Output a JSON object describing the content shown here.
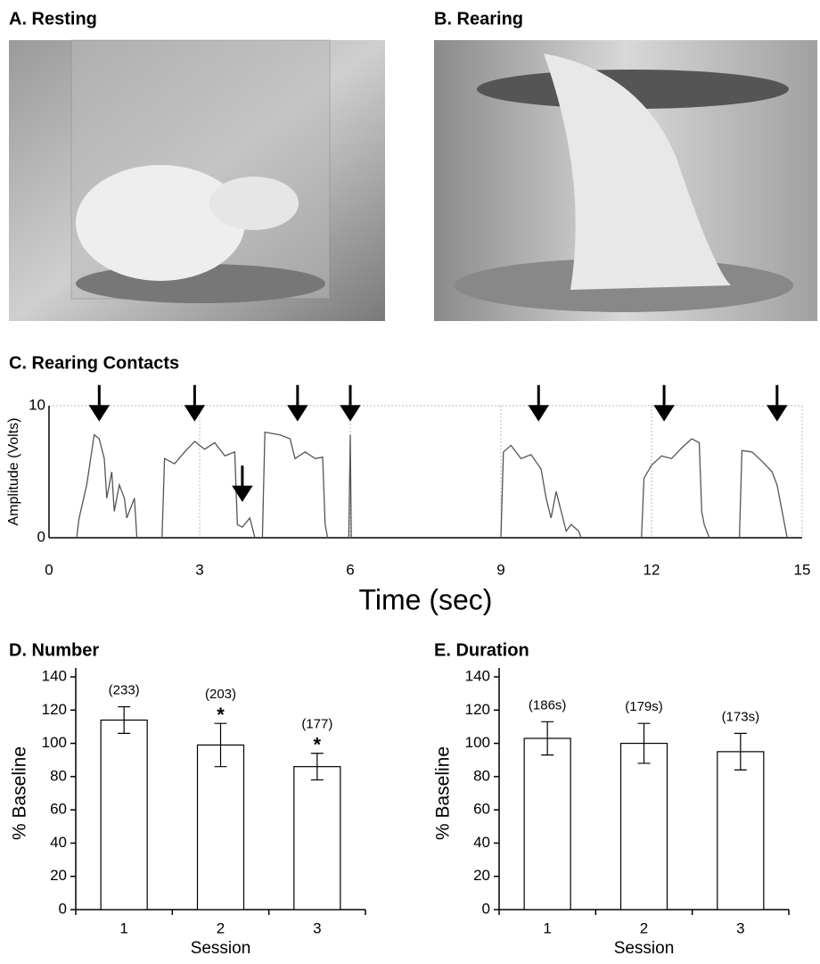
{
  "panels": [
    {
      "label": "A. Resting"
    },
    {
      "label": "B. Rearing"
    }
  ],
  "chart_data": [
    {
      "type": "line",
      "title": "C. Rearing Contacts",
      "xlabel": "Time (sec)",
      "ylabel": "Amplitude (Volts)",
      "x": [
        0.55,
        0.6,
        0.75,
        0.9,
        1.0,
        1.1,
        1.15,
        1.25,
        1.3,
        1.4,
        1.5,
        1.55,
        1.7,
        1.75,
        null,
        2.25,
        2.3,
        2.5,
        2.7,
        2.9,
        3.1,
        3.3,
        3.5,
        3.7,
        3.75,
        3.85,
        4.0,
        4.1,
        null,
        4.25,
        4.3,
        4.6,
        4.8,
        4.9,
        5.1,
        5.3,
        5.45,
        5.5,
        5.55,
        null,
        5.97,
        6.0,
        6.02,
        null,
        9.0,
        9.05,
        9.2,
        9.4,
        9.6,
        9.8,
        9.9,
        10.0,
        10.1,
        10.2,
        10.3,
        10.4,
        10.55,
        10.6,
        null,
        11.8,
        11.85,
        12.0,
        12.2,
        12.4,
        12.6,
        12.8,
        12.95,
        13.0,
        13.05,
        13.15,
        null,
        13.75,
        13.8,
        14.0,
        14.2,
        14.4,
        14.5,
        14.6,
        14.7
      ],
      "values": [
        0,
        1.5,
        4,
        7.8,
        7.5,
        6,
        3,
        5,
        2,
        4,
        3,
        1.5,
        3,
        0,
        null,
        0,
        6,
        5.6,
        6.5,
        7.3,
        6.7,
        7.2,
        6.2,
        6.5,
        1,
        0.8,
        1.5,
        0,
        null,
        0,
        8,
        7.8,
        7.5,
        6,
        6.5,
        6,
        6.1,
        1,
        0,
        null,
        0,
        7.8,
        0,
        null,
        0,
        6.5,
        7,
        6,
        6.3,
        5.2,
        3,
        1.5,
        3.5,
        2,
        0.5,
        1,
        0.5,
        0,
        null,
        0,
        4.5,
        5.5,
        6.2,
        6,
        6.8,
        7.5,
        7.2,
        2,
        1,
        0,
        null,
        0,
        6.6,
        6.5,
        5.8,
        5,
        4,
        2,
        0
      ],
      "color": "#555555",
      "arrows": {
        "x": [
          1.0,
          2.9,
          3.85,
          4.95,
          6.0,
          9.75,
          12.25,
          14.5
        ],
        "y": [
          9,
          9,
          2.9,
          9,
          9,
          9,
          9,
          9
        ]
      },
      "xlim": [
        0,
        15
      ],
      "xticks": [
        0,
        3,
        6,
        9,
        12,
        15
      ],
      "ylim": [
        0,
        10
      ],
      "yticks": [
        0,
        10
      ],
      "grid": true
    },
    {
      "type": "bar",
      "title": "D. Number",
      "xlabel": "Session",
      "ylabel": "% Baseline",
      "categories": [
        "1",
        "2",
        "3"
      ],
      "values": [
        114,
        99,
        86
      ],
      "errors": [
        8,
        13,
        8
      ],
      "count_labels": [
        "(233)",
        "(203)",
        "(177)"
      ],
      "significance": [
        null,
        "*",
        "*"
      ],
      "color": "#ffffff",
      "ylim": [
        0,
        140
      ],
      "yticks": [
        0,
        20,
        40,
        60,
        80,
        100,
        120,
        140
      ]
    },
    {
      "type": "bar",
      "title": "E. Duration",
      "xlabel": "Session",
      "ylabel": "% Baseline",
      "categories": [
        "1",
        "2",
        "3"
      ],
      "values": [
        103,
        100,
        95
      ],
      "errors": [
        10,
        12,
        11
      ],
      "count_labels": [
        "(186s)",
        "(179s)",
        "(173s)"
      ],
      "significance": [
        null,
        null,
        null
      ],
      "color": "#ffffff",
      "ylim": [
        0,
        140
      ],
      "yticks": [
        0,
        20,
        40,
        60,
        80,
        100,
        120,
        140
      ]
    }
  ]
}
